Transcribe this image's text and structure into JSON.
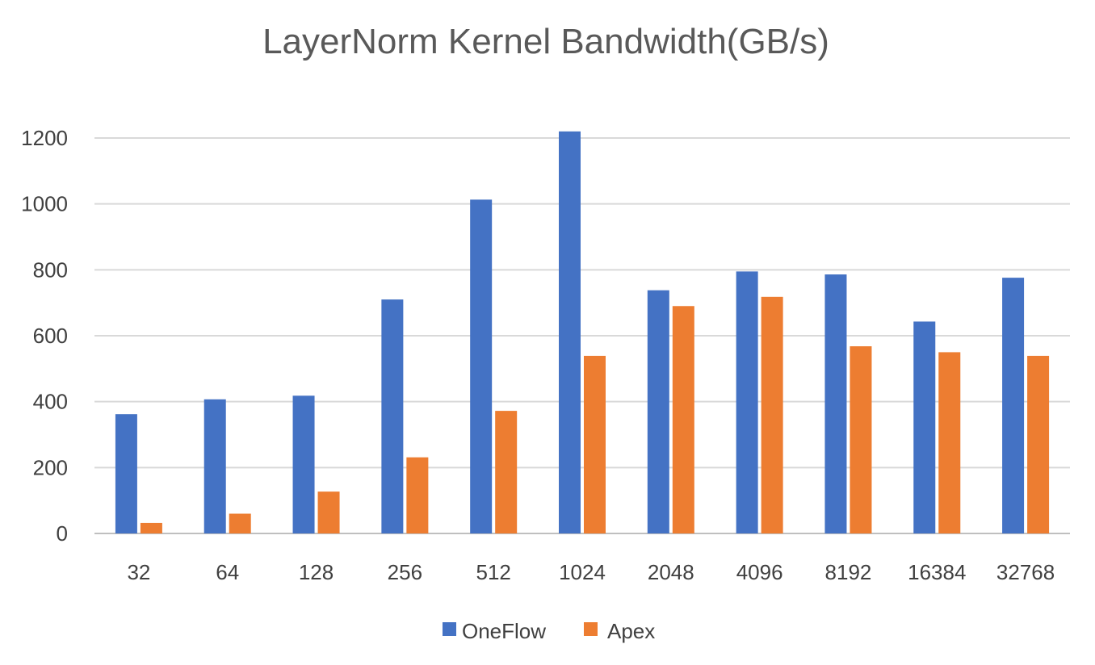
{
  "chart_data": {
    "type": "bar",
    "title": "LayerNorm Kernel Bandwidth(GB/s)",
    "xlabel": "",
    "ylabel": "",
    "categories": [
      "32",
      "64",
      "128",
      "256",
      "512",
      "1024",
      "2048",
      "4096",
      "8192",
      "16384",
      "32768"
    ],
    "series": [
      {
        "name": "OneFlow",
        "color": "#4472C4",
        "values": [
          362,
          407,
          418,
          710,
          1013,
          1220,
          738,
          795,
          786,
          643,
          776
        ]
      },
      {
        "name": "Apex",
        "color": "#ED7D31",
        "values": [
          32,
          60,
          127,
          231,
          372,
          539,
          690,
          718,
          568,
          550,
          539
        ]
      }
    ],
    "ylim": [
      0,
      1200
    ],
    "yticks": [
      0,
      200,
      400,
      600,
      800,
      1000,
      1200
    ],
    "grid": true,
    "legend_position": "bottom"
  }
}
